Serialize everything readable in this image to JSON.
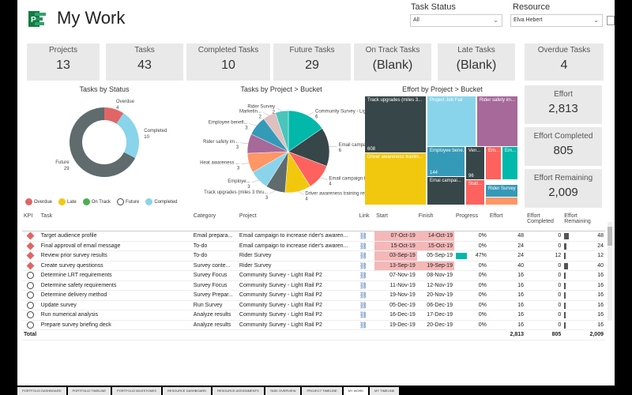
{
  "header": {
    "title": "My Work",
    "task_status_label": "Task Status",
    "task_status_value": "All",
    "resource_label": "Resource",
    "resource_value": "Elva Hebert"
  },
  "cards": [
    {
      "label": "Projects",
      "value": "13"
    },
    {
      "label": "Tasks",
      "value": "43"
    },
    {
      "label": "Completed Tasks",
      "value": "10"
    },
    {
      "label": "Future Tasks",
      "value": "29"
    },
    {
      "label": "On Track Tasks",
      "value": "(Blank)"
    },
    {
      "label": "Late Tasks",
      "value": "(Blank)"
    },
    {
      "label": "Overdue Tasks",
      "value": "4"
    }
  ],
  "effort_cards": [
    {
      "label": "Effort",
      "value": "2,813"
    },
    {
      "label": "Effort Completed",
      "value": "805"
    },
    {
      "label": "Effort Remaining",
      "value": "2,009"
    }
  ],
  "colors": {
    "overdue": "#e06666",
    "late": "#f2c80f",
    "on_track": "#4caf50",
    "future": "#5f6b6d",
    "completed": "#8ad4eb",
    "teal": "#01b8aa",
    "blue": "#3599b8",
    "yellow": "#f2c80f",
    "purple": "#a66999",
    "dark": "#374649",
    "red": "#fd625e",
    "orange": "#fe9666"
  },
  "chart_data": [
    {
      "type": "pie",
      "title": "Tasks by Status",
      "donut": true,
      "slices": [
        {
          "name": "Overdue",
          "value": 4,
          "color": "#e06666",
          "label": "Overdue 4"
        },
        {
          "name": "Completed",
          "value": 10,
          "color": "#8ad4eb",
          "label": "Completed 10"
        },
        {
          "name": "Future",
          "value": 29,
          "color": "#5f6b6d",
          "label": "Future 29"
        }
      ],
      "legend": [
        "Overdue",
        "Late",
        "On Track",
        "Future",
        "Completed"
      ],
      "legend_colors": [
        "#e06666",
        "#f2c80f",
        "#4caf50",
        "#ffffff",
        "#8ad4eb"
      ]
    },
    {
      "type": "pie",
      "title": "Tasks by Project > Bucket",
      "slices": [
        {
          "label": "Community Survey - Light Rail P2",
          "value": 6,
          "color": "#01b8aa"
        },
        {
          "label": "Email campaign t...",
          "value": 6,
          "color": "#374649"
        },
        {
          "label": "Email campaign to i...",
          "value": 4,
          "color": "#fd625e"
        },
        {
          "label": "Driver awareness training refresh",
          "value": 4,
          "color": "#f2c80f"
        },
        {
          "label": "Track upgrades (miles 3 thru...",
          "value": 3,
          "color": "#5f6b6d"
        },
        {
          "label": "Employe...",
          "value": 3,
          "color": "#8ad4eb"
        },
        {
          "label": "Heat awareness ...",
          "value": 3,
          "color": "#fe9666"
        },
        {
          "label": "Rider safety im...",
          "value": 3,
          "color": "#a66999"
        },
        {
          "label": "Employee benefi...",
          "value": 3,
          "color": "#3599b8"
        },
        {
          "label": "Marketin...",
          "value": 2,
          "color": "#dfbfbf"
        },
        {
          "label": "Rider Survey",
          "value": 2,
          "color": "#4ac5bb"
        }
      ],
      "value_labels": [
        "6",
        "6",
        "4",
        "4",
        "3",
        "3",
        "3",
        "3",
        "3",
        "2",
        "2"
      ]
    },
    {
      "type": "treemap",
      "title": "Effort by Project > Bucket",
      "cells": [
        {
          "label": "Track upgrades (miles 3...",
          "value": "608",
          "color": "#374649"
        },
        {
          "label": "Driver awareness trainin...",
          "value": "",
          "color": "#f2c80f"
        },
        {
          "label": "Project Job Fair",
          "value": "",
          "color": "#8ad4eb"
        },
        {
          "label": "Rider safety im...",
          "value": "",
          "color": "#a66999"
        },
        {
          "label": "",
          "value": "144",
          "color": "#3599b8"
        },
        {
          "label": "Employee bene...",
          "value": "",
          "color": "#3599b8"
        },
        {
          "label": "Emai campai...",
          "value": "",
          "color": "#374649"
        },
        {
          "label": "Ven...",
          "value": "96",
          "color": "#374649"
        },
        {
          "label": "Em...",
          "value": "",
          "color": "#fd625e"
        },
        {
          "label": "Em...",
          "value": "",
          "color": "#01b8aa"
        },
        {
          "label": "Stati...",
          "value": "",
          "color": "#fd625e"
        },
        {
          "label": "Rider Survey",
          "value": "",
          "color": "#3599b8"
        },
        {
          "label": "",
          "value": "",
          "color": "#fe9666"
        }
      ]
    }
  ],
  "table": {
    "columns": [
      "KPI",
      "Task",
      "Category",
      "Project",
      "Link",
      "Start",
      "Finish",
      "Progress",
      "Effort",
      "Effort Completed",
      "Effort Remaining"
    ],
    "rows": [
      {
        "kpi": "overdue",
        "task": "Target audience profile",
        "category": "Email prepara...",
        "project": "Email campaign to increase rider's awaren...",
        "start": "07-Oct-19",
        "finish": "14-Oct-19",
        "progress": "0%",
        "progress_value": 0,
        "effort": "48",
        "completed": "0",
        "remaining": "48",
        "remaining_value": 48,
        "start_hl": true,
        "finish_hl": true
      },
      {
        "kpi": "overdue",
        "task": "Final approval of email message",
        "category": "To-do",
        "project": "Email campaign to increase rider's awaren...",
        "start": "15-Oct-19",
        "finish": "15-Oct-19",
        "progress": "0%",
        "progress_value": 0,
        "effort": "24",
        "completed": "0",
        "remaining": "24",
        "remaining_value": 24,
        "start_hl": true,
        "finish_hl": true
      },
      {
        "kpi": "overdue",
        "task": "Review prior survey results",
        "category": "To-do",
        "project": "Rider Survey",
        "start": "03-Sep-19",
        "finish": "05-Sep-19",
        "progress": "47%",
        "progress_value": 47,
        "effort": "24",
        "completed": "12",
        "remaining": "12",
        "remaining_value": 12,
        "start_hl": true,
        "finish_hl": false
      },
      {
        "kpi": "overdue",
        "task": "Create survey questionss",
        "category": "Survey conte...",
        "project": "Rider Survey",
        "start": "13-Sep-19",
        "finish": "19-Sep-19",
        "progress": "0%",
        "progress_value": 0,
        "effort": "40",
        "completed": "0",
        "remaining": "40",
        "remaining_value": 40,
        "start_hl": true,
        "finish_hl": true
      },
      {
        "kpi": "future",
        "task": "Determine LRT requirements",
        "category": "Survey Focus",
        "project": "Community Survey - Light Rail P2",
        "start": "07-Nov-19",
        "finish": "08-Nov-19",
        "progress": "0%",
        "progress_value": 0,
        "effort": "16",
        "completed": "0",
        "remaining": "16",
        "remaining_value": 16,
        "start_hl": false,
        "finish_hl": false
      },
      {
        "kpi": "future",
        "task": "Determine safety requirements",
        "category": "Survey Focus",
        "project": "Community Survey - Light Rail P2",
        "start": "11-Nov-19",
        "finish": "12-Nov-19",
        "progress": "0%",
        "progress_value": 0,
        "effort": "16",
        "completed": "0",
        "remaining": "16",
        "remaining_value": 16,
        "start_hl": false,
        "finish_hl": false
      },
      {
        "kpi": "future",
        "task": "Determine delivery method",
        "category": "Survey Prepar...",
        "project": "Community Survey - Light Rail P2",
        "start": "19-Nov-19",
        "finish": "20-Nov-19",
        "progress": "0%",
        "progress_value": 0,
        "effort": "16",
        "completed": "0",
        "remaining": "16",
        "remaining_value": 16,
        "start_hl": false,
        "finish_hl": false
      },
      {
        "kpi": "future",
        "task": "Update survey",
        "category": "Run Survey",
        "project": "Community Survey - Light Rail P2",
        "start": "05-Dec-19",
        "finish": "06-Dec-19",
        "progress": "0%",
        "progress_value": 0,
        "effort": "16",
        "completed": "0",
        "remaining": "16",
        "remaining_value": 16,
        "start_hl": false,
        "finish_hl": false
      },
      {
        "kpi": "future",
        "task": "Run numerical analysis",
        "category": "Analyze results",
        "project": "Community Survey - Light Rail P2",
        "start": "16-Dec-19",
        "finish": "17-Dec-19",
        "progress": "0%",
        "progress_value": 0,
        "effort": "16",
        "completed": "0",
        "remaining": "16",
        "remaining_value": 16,
        "start_hl": false,
        "finish_hl": false
      },
      {
        "kpi": "future",
        "task": "Prepare survey briefing deck",
        "category": "Analyze results",
        "project": "Community Survey - Light Rail P2",
        "start": "19-Dec-19",
        "finish": "20-Dec-19",
        "progress": "0%",
        "progress_value": 0,
        "effort": "16",
        "completed": "0",
        "remaining": "16",
        "remaining_value": 16,
        "start_hl": false,
        "finish_hl": false
      }
    ],
    "total": {
      "label": "Total",
      "effort": "2,813",
      "completed": "805",
      "remaining": "2,009"
    }
  },
  "tabs": [
    "Portfolio Dashboard",
    "Portfolio Timeline",
    "Portfolio Milestones",
    "Resource Dashboard",
    "Resource Assignments",
    "Task Overview",
    "Project Timeline",
    "My Work",
    "My Timeline"
  ],
  "active_tab": "My Work"
}
